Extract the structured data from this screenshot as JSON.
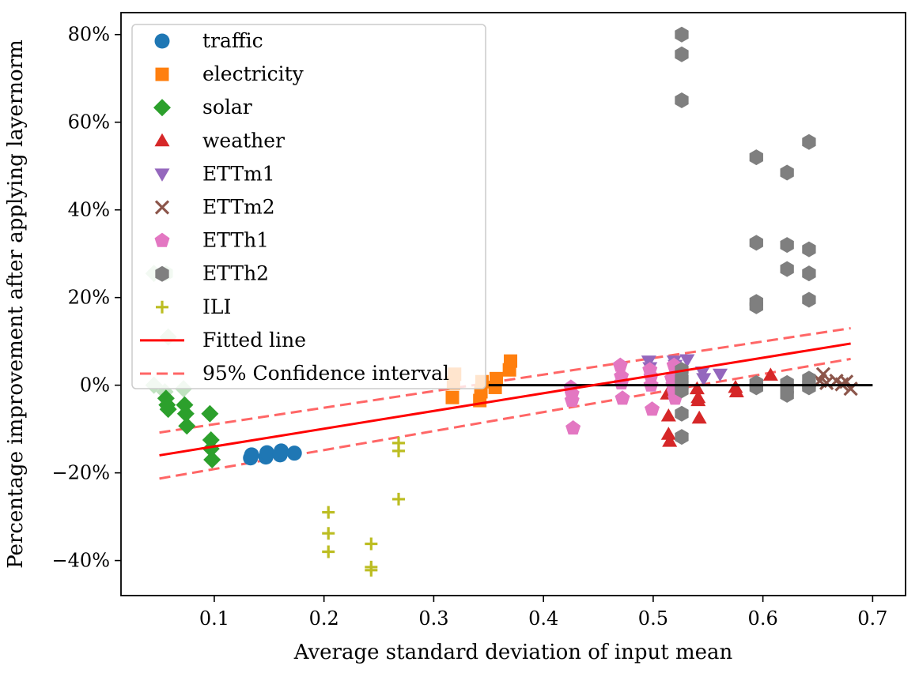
{
  "chart_data": {
    "type": "scatter",
    "title": "",
    "xlabel": "Average standard deviation of input mean",
    "ylabel": "Percentage improvement after applying layernorm",
    "xlim": [
      0.015,
      0.73
    ],
    "ylim": [
      -48,
      85
    ],
    "xticks": [
      {
        "value": 0.1,
        "label": "0.1"
      },
      {
        "value": 0.2,
        "label": "0.2"
      },
      {
        "value": 0.3,
        "label": "0.3"
      },
      {
        "value": 0.4,
        "label": "0.4"
      },
      {
        "value": 0.5,
        "label": "0.5"
      },
      {
        "value": 0.6,
        "label": "0.6"
      },
      {
        "value": 0.7,
        "label": "0.7"
      }
    ],
    "yticks": [
      {
        "value": -40,
        "label": "−40%"
      },
      {
        "value": -20,
        "label": "−20%"
      },
      {
        "value": 0,
        "label": "0%"
      },
      {
        "value": 20,
        "label": "20%"
      },
      {
        "value": 40,
        "label": "40%"
      },
      {
        "value": 60,
        "label": "60%"
      },
      {
        "value": 80,
        "label": "80%"
      }
    ],
    "grid": false,
    "legend_position": "upper-left",
    "series": [
      {
        "name": "traffic",
        "marker": "circle",
        "color": "#1f77b4",
        "points": [
          [
            0.133,
            -16.6
          ],
          [
            0.134,
            -15.9
          ],
          [
            0.147,
            -16.4
          ],
          [
            0.148,
            -15.4
          ],
          [
            0.16,
            -15.9
          ],
          [
            0.161,
            -15.0
          ],
          [
            0.173,
            -15.5
          ]
        ]
      },
      {
        "name": "electricity",
        "marker": "square",
        "color": "#ff7f0e",
        "points": [
          [
            0.317,
            -2.8
          ],
          [
            0.318,
            0.5
          ],
          [
            0.319,
            2.5
          ],
          [
            0.342,
            -3.5
          ],
          [
            0.343,
            -1.5
          ],
          [
            0.344,
            0.8
          ],
          [
            0.356,
            -0.5
          ],
          [
            0.357,
            1.5
          ],
          [
            0.369,
            3.5
          ],
          [
            0.37,
            5.5
          ]
        ]
      },
      {
        "name": "solar",
        "marker": "diamond",
        "color": "#2ca02c",
        "points": [
          [
            0.056,
            -3.0
          ],
          [
            0.057,
            -4.5
          ],
          [
            0.058,
            -5.5
          ],
          [
            0.073,
            -4.5
          ],
          [
            0.074,
            -6.5
          ],
          [
            0.075,
            -9.3
          ],
          [
            0.096,
            -6.5
          ],
          [
            0.097,
            -12.5
          ],
          [
            0.097,
            -14.5
          ],
          [
            0.098,
            -17.0
          ]
        ]
      },
      {
        "name": "weather",
        "marker": "triangle-up",
        "color": "#d62728",
        "points": [
          [
            0.513,
            -2.0
          ],
          [
            0.514,
            -7.0
          ],
          [
            0.514,
            -11.2
          ],
          [
            0.515,
            -12.8
          ],
          [
            0.54,
            -0.8
          ],
          [
            0.541,
            -2.8
          ],
          [
            0.541,
            -3.5
          ],
          [
            0.542,
            -7.5
          ],
          [
            0.575,
            -0.5
          ],
          [
            0.576,
            -1.5
          ],
          [
            0.607,
            2.3
          ]
        ]
      },
      {
        "name": "ETTm1",
        "marker": "triangle-down",
        "color": "#9467bd",
        "points": [
          [
            0.496,
            5.5
          ],
          [
            0.497,
            4.0
          ],
          [
            0.519,
            5.5
          ],
          [
            0.52,
            4.5
          ],
          [
            0.531,
            5.8
          ],
          [
            0.545,
            3.0
          ],
          [
            0.546,
            1.5
          ],
          [
            0.561,
            2.5
          ]
        ]
      },
      {
        "name": "ETTm2",
        "marker": "x",
        "color": "#8c564b",
        "points": [
          [
            0.652,
            1.0
          ],
          [
            0.655,
            2.5
          ],
          [
            0.658,
            0.5
          ],
          [
            0.667,
            1.0
          ],
          [
            0.672,
            0.2
          ],
          [
            0.676,
            0.8
          ],
          [
            0.68,
            -0.8
          ]
        ]
      },
      {
        "name": "ETTh1",
        "marker": "pentagon",
        "color": "#e377c2",
        "points": [
          [
            0.425,
            -0.5
          ],
          [
            0.426,
            -2.0
          ],
          [
            0.426,
            -3.5
          ],
          [
            0.427,
            -9.8
          ],
          [
            0.47,
            4.5
          ],
          [
            0.471,
            2.0
          ],
          [
            0.471,
            0.5
          ],
          [
            0.472,
            -3.0
          ],
          [
            0.497,
            3.5
          ],
          [
            0.498,
            2.0
          ],
          [
            0.498,
            0.0
          ],
          [
            0.499,
            -5.5
          ],
          [
            0.517,
            1.5
          ],
          [
            0.518,
            0.0
          ],
          [
            0.519,
            -1.5
          ],
          [
            0.52,
            -3.0
          ],
          [
            0.519,
            4.5
          ]
        ]
      },
      {
        "name": "ETTh2",
        "marker": "hexagon",
        "color": "#7f7f7f",
        "points": [
          [
            0.526,
            80.0
          ],
          [
            0.526,
            75.5
          ],
          [
            0.526,
            65.0
          ],
          [
            0.526,
            3.5
          ],
          [
            0.526,
            1.5
          ],
          [
            0.526,
            0.0
          ],
          [
            0.526,
            -1.2
          ],
          [
            0.526,
            -6.5
          ],
          [
            0.526,
            -11.8
          ],
          [
            0.594,
            52.0
          ],
          [
            0.594,
            32.5
          ],
          [
            0.594,
            19.0
          ],
          [
            0.594,
            18.0
          ],
          [
            0.594,
            0.5
          ],
          [
            0.594,
            -0.5
          ],
          [
            0.622,
            48.5
          ],
          [
            0.622,
            32.0
          ],
          [
            0.622,
            26.5
          ],
          [
            0.622,
            0.5
          ],
          [
            0.622,
            -1.0
          ],
          [
            0.622,
            -2.2
          ],
          [
            0.642,
            55.5
          ],
          [
            0.642,
            31.0
          ],
          [
            0.642,
            25.5
          ],
          [
            0.642,
            19.5
          ],
          [
            0.642,
            1.5
          ],
          [
            0.642,
            0.0
          ],
          [
            0.642,
            -0.5
          ]
        ]
      },
      {
        "name": "ILI",
        "marker": "plus",
        "color": "#bcbd22",
        "points": [
          [
            0.204,
            -29.0
          ],
          [
            0.204,
            -33.8
          ],
          [
            0.204,
            -38.0
          ],
          [
            0.243,
            -36.2
          ],
          [
            0.243,
            -41.5
          ],
          [
            0.243,
            -42.2
          ],
          [
            0.268,
            -13.2
          ],
          [
            0.268,
            -15.0
          ],
          [
            0.268,
            -26.0
          ]
        ]
      }
    ],
    "fitted_line": {
      "name": "Fitted line",
      "color": "#ff0000",
      "points": [
        [
          0.05,
          -16.0
        ],
        [
          0.68,
          9.5
        ]
      ]
    },
    "confidence_interval": {
      "name": "95% Confidence interval",
      "color": "#ff6666",
      "upper": [
        [
          0.05,
          -10.8
        ],
        [
          0.68,
          13.0
        ]
      ],
      "lower": [
        [
          0.05,
          -21.3
        ],
        [
          0.68,
          6.0
        ]
      ]
    },
    "zero_line": {
      "color": "#000000",
      "points": [
        [
          0.35,
          0
        ],
        [
          0.7,
          0
        ]
      ]
    },
    "faded_markers": [
      {
        "marker": "diamond",
        "points": [
          [
            0.045,
            25.5
          ],
          [
            0.045,
            0.0
          ],
          [
            0.055,
            -1.5
          ],
          [
            0.072,
            -0.8
          ],
          [
            0.058,
            11.0
          ]
        ]
      },
      {
        "marker": "hexagon",
        "points": [
          [
            0.056,
            25.5
          ]
        ]
      }
    ]
  }
}
